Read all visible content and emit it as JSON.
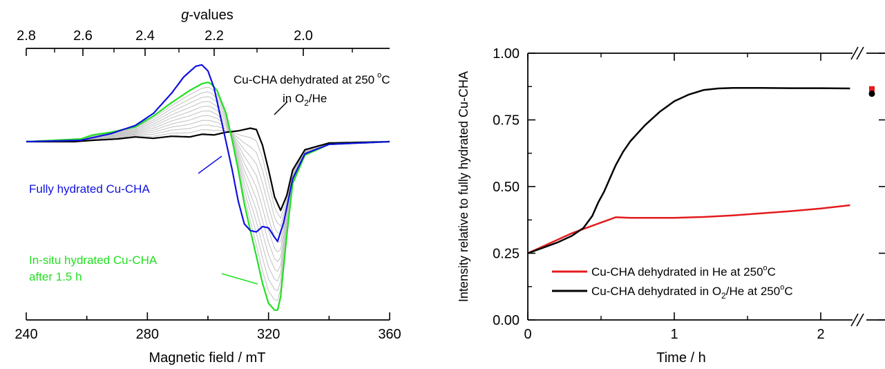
{
  "chart_data": [
    {
      "type": "line",
      "title": "",
      "xlabel": "Magnetic field / mT",
      "xlim": [
        240,
        360
      ],
      "xticks": [
        "240",
        "280",
        "320",
        "360"
      ],
      "x2label_italic": "g",
      "x2label_rest": "-values",
      "x2ticks": [
        "2.8",
        "2.6",
        "2.4",
        "2.2",
        "2.0"
      ],
      "y_axis_shown": false,
      "annotations": {
        "dehydrated_line1": "Cu-CHA dehydrated at 250",
        "dehydrated_deg": "o",
        "dehydrated_unit": "C",
        "dehydrated_line2_a": "in O",
        "dehydrated_line2_sub": "2",
        "dehydrated_line2_b": "/He",
        "fully": "Fully hydrated Cu-CHA",
        "insitu_line1": "In-situ hydrated Cu-CHA",
        "insitu_line2": "after 1.5 h"
      },
      "colors": {
        "fully": "#1010e0",
        "insitu": "#20e020",
        "dehydrated": "#000000",
        "intermediate": "#c0c0c0"
      },
      "series": [
        {
          "key": "fully",
          "x": [
            240,
            258,
            262,
            268,
            276,
            282,
            288,
            292,
            296,
            298,
            300,
            302,
            305,
            308,
            310,
            312,
            314,
            316,
            318,
            320,
            322,
            323,
            325,
            328,
            332,
            340,
            360
          ],
          "y": [
            0,
            0.02,
            0.06,
            0.12,
            0.24,
            0.42,
            0.72,
            0.96,
            1.12,
            1.14,
            1.05,
            0.8,
            0.2,
            -0.42,
            -0.88,
            -1.22,
            -1.32,
            -1.34,
            -1.26,
            -1.28,
            -1.42,
            -1.48,
            -1.2,
            -0.55,
            -0.18,
            -0.04,
            0
          ]
        },
        {
          "key": "insitu",
          "x": [
            240,
            258,
            262,
            268,
            276,
            282,
            288,
            294,
            298,
            300,
            301,
            303,
            306,
            308,
            310,
            312,
            314,
            316,
            318,
            320,
            322,
            323,
            324,
            326,
            328,
            332,
            340,
            360
          ],
          "y": [
            0,
            0.04,
            0.1,
            0.14,
            0.22,
            0.38,
            0.58,
            0.76,
            0.86,
            0.88,
            0.86,
            0.76,
            0.42,
            0.02,
            -0.42,
            -0.92,
            -1.32,
            -1.7,
            -2.1,
            -2.4,
            -2.5,
            -2.5,
            -2.3,
            -1.4,
            -0.62,
            -0.2,
            -0.04,
            0
          ]
        },
        {
          "key": "dehydrated",
          "x": [
            240,
            256,
            262,
            270,
            276,
            282,
            288,
            294,
            298,
            302,
            306,
            310,
            314,
            316,
            318,
            320,
            322,
            324,
            326,
            328,
            332,
            340,
            360
          ],
          "y": [
            0,
            0.0,
            0.02,
            0.04,
            0.07,
            0.05,
            0.08,
            0.07,
            0.11,
            0.1,
            0.14,
            0.16,
            0.2,
            0.18,
            -0.05,
            -0.42,
            -0.82,
            -1.02,
            -0.8,
            -0.42,
            -0.12,
            -0.02,
            0
          ]
        }
      ]
    },
    {
      "type": "line",
      "title": "",
      "xlabel": "Time / h",
      "ylabel": "Intensity relative to fully hydrated Cu-CHA",
      "xlim": [
        0,
        2.2
      ],
      "ylim": [
        0,
        1.0
      ],
      "xticks": [
        "0",
        "1",
        "2"
      ],
      "yticks": [
        "0.00",
        "0.25",
        "0.50",
        "0.75",
        "1.00"
      ],
      "axis_break": true,
      "legend_position": "lower-center",
      "series": [
        {
          "name": "Cu-CHA dehydrated in He at 250°C",
          "legend_parts": [
            "Cu-CHA dehydrated in He at 250",
            "o",
            "C"
          ],
          "color": "#e41a1c",
          "x": [
            0,
            0.1,
            0.2,
            0.3,
            0.4,
            0.5,
            0.55,
            0.6,
            0.7,
            0.8,
            1.0,
            1.2,
            1.4,
            1.6,
            1.8,
            2.0,
            2.2
          ],
          "y": [
            0.25,
            0.275,
            0.3,
            0.325,
            0.345,
            0.365,
            0.375,
            0.385,
            0.383,
            0.383,
            0.383,
            0.386,
            0.392,
            0.4,
            0.408,
            0.418,
            0.43
          ],
          "after_break_value": 0.866
        },
        {
          "name": "Cu-CHA dehydrated in O2/He at 250°C",
          "legend_parts": [
            "Cu-CHA dehydrated in O",
            "2",
            "/He at 250",
            "o",
            "C"
          ],
          "color": "#000000",
          "x": [
            0,
            0.1,
            0.2,
            0.3,
            0.38,
            0.44,
            0.48,
            0.52,
            0.56,
            0.6,
            0.65,
            0.7,
            0.8,
            0.9,
            1.0,
            1.1,
            1.2,
            1.3,
            1.4,
            1.6,
            1.8,
            2.0,
            2.2
          ],
          "y": [
            0.25,
            0.27,
            0.29,
            0.315,
            0.345,
            0.39,
            0.44,
            0.48,
            0.53,
            0.58,
            0.63,
            0.67,
            0.73,
            0.78,
            0.82,
            0.845,
            0.862,
            0.868,
            0.87,
            0.87,
            0.869,
            0.869,
            0.868
          ],
          "after_break_value": 0.848
        }
      ]
    }
  ]
}
